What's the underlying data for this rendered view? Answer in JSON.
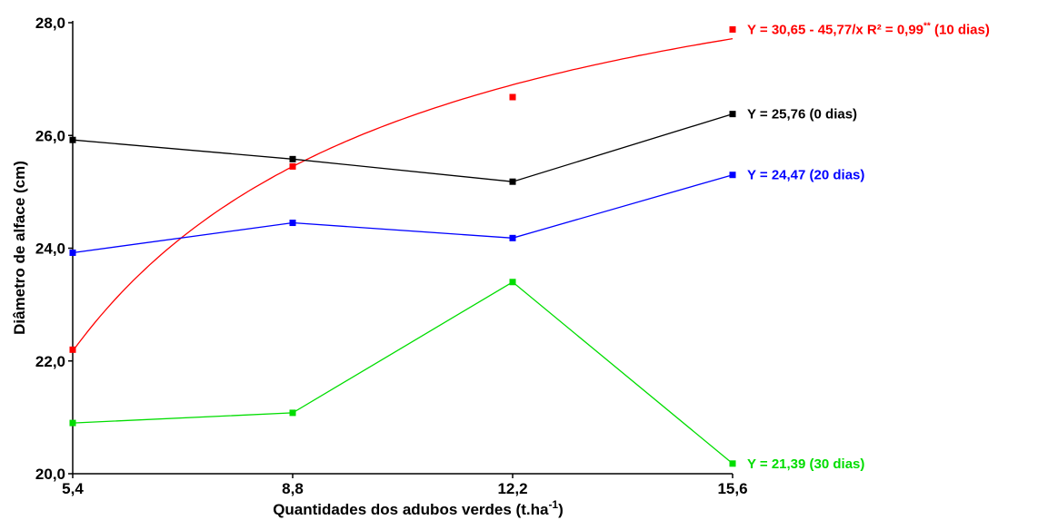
{
  "chart_data": {
    "type": "line",
    "title": "",
    "xlabel": "Quantidades dos adubos verdes (t.ha",
    "xlabel_sup": "-1",
    "xlabel_close": ")",
    "ylabel": "Diâmetro de alface (cm)",
    "x": [
      5.4,
      8.8,
      12.2,
      15.6
    ],
    "x_tick_labels": [
      "5,4",
      "8,8",
      "12,2",
      "15,6"
    ],
    "y_ticks": [
      20,
      22,
      24,
      26,
      28
    ],
    "y_tick_labels": [
      "20,0",
      "22,0",
      "24,0",
      "26,0",
      "28,0"
    ],
    "xlim": [
      5.4,
      15.6
    ],
    "ylim": [
      20,
      28
    ],
    "grid": false,
    "series": [
      {
        "id": "d10",
        "color": "#ff0000",
        "values": [
          22.2,
          25.45,
          26.68,
          27.88
        ],
        "fit": {
          "type": "reciprocal",
          "a": 30.65,
          "b": 45.77
        },
        "label": "Y = 30,65 - 45,77/x   R² = 0,99",
        "label_sup": "**",
        "label_tail": "   (10 dias)"
      },
      {
        "id": "d0",
        "color": "#000000",
        "values": [
          25.92,
          25.58,
          25.18,
          26.38
        ],
        "label": "Y = 25,76   (0 dias)",
        "label_sup": "",
        "label_tail": ""
      },
      {
        "id": "d20",
        "color": "#0000ff",
        "values": [
          23.92,
          24.45,
          24.18,
          25.3
        ],
        "label": "Y = 24,47   (20 dias)",
        "label_sup": "",
        "label_tail": ""
      },
      {
        "id": "d30",
        "color": "#00dd00",
        "values": [
          20.9,
          21.08,
          23.4,
          20.18
        ],
        "label": "Y = 21,39   (30 dias)",
        "label_sup": "",
        "label_tail": ""
      }
    ]
  }
}
